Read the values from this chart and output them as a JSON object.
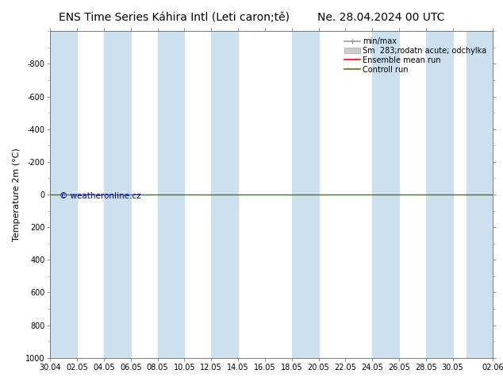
{
  "title_left": "ENS Time Series Káhira Intl (Leti caron;tě)",
  "title_right": "Ne. 28.04.2024 00 UTC",
  "ylabel": "Temperature 2m (°C)",
  "ylim_top": -1000,
  "ylim_bottom": 1000,
  "yticks": [
    -800,
    -600,
    -400,
    -200,
    0,
    200,
    400,
    600,
    800,
    1000
  ],
  "x_labels": [
    "30.04",
    "02.05",
    "04.05",
    "06.05",
    "08.05",
    "10.05",
    "12.05",
    "14.05",
    "16.05",
    "18.05",
    "20.05",
    "22.05",
    "24.05",
    "26.05",
    "28.05",
    "30.05",
    "02.06"
  ],
  "x_values": [
    0,
    2,
    4,
    6,
    8,
    10,
    12,
    14,
    16,
    18,
    20,
    22,
    24,
    26,
    28,
    30,
    33
  ],
  "x_min": 0,
  "x_max": 33,
  "background_color": "#ffffff",
  "stripe_color": "#cce0f0",
  "line_y": 0,
  "ensemble_mean_color": "#ff0000",
  "control_run_color": "#4a7a00",
  "watermark_text": "© weatheronline.cz",
  "watermark_color": "#0000aa",
  "legend_label_minmax": "min/max",
  "legend_label_std": "Sm  283;rodatn acute; odchylka",
  "legend_label_ens": "Ensemble mean run",
  "legend_label_ctrl": "Controll run",
  "stripe_starts": [
    0,
    4,
    8,
    12,
    18,
    24,
    26
  ],
  "stripe_ends": [
    2,
    6,
    10,
    14,
    20,
    26,
    28
  ],
  "title_fontsize": 10,
  "tick_fontsize": 7,
  "legend_fontsize": 7,
  "ylabel_fontsize": 8
}
